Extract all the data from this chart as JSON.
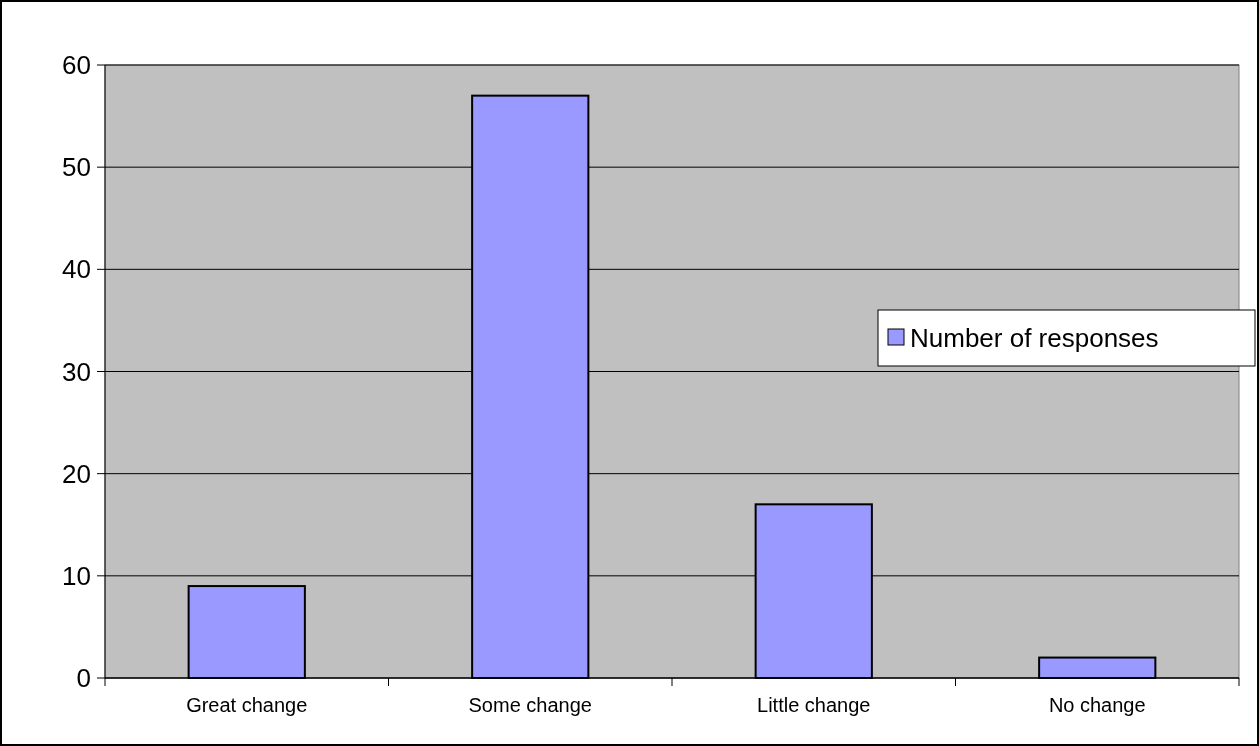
{
  "chart_data": {
    "type": "bar",
    "categories": [
      "Great change",
      "Some change",
      "Little change",
      "No change"
    ],
    "series": [
      {
        "name": "Number of responses",
        "color": "#9999ff",
        "values": [
          9,
          57,
          17,
          2
        ]
      }
    ],
    "ylim": [
      0,
      60
    ],
    "yticks": [
      0,
      10,
      20,
      30,
      40,
      50,
      60
    ],
    "grid": "y",
    "legend": "right"
  }
}
